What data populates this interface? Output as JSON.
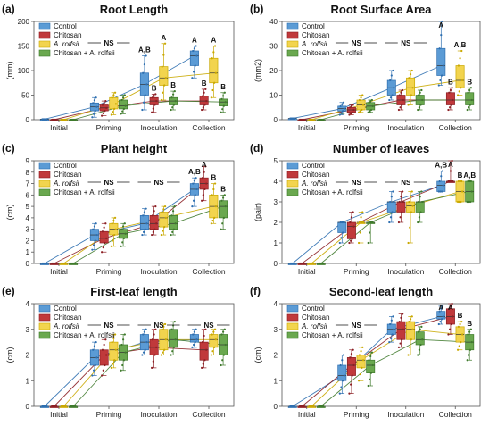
{
  "figure": {
    "x_categories": [
      "Initial",
      "Priming",
      "Inoculation",
      "Collection"
    ],
    "legend_labels": [
      "Control",
      "Chitosan",
      "A. rolfsii",
      "Chitosan + A. rolfsii"
    ],
    "legend_italic": [
      false,
      false,
      true,
      false
    ],
    "colors": [
      "#5b9bd5",
      "#c0393b",
      "#f2d44e",
      "#6aa84f"
    ],
    "outline_colors": [
      "#2e6fb0",
      "#8c1f24",
      "#c9a800",
      "#3f7a2c"
    ],
    "significance_note": "NS"
  },
  "chart_data": [
    {
      "panel": "(a)",
      "type": "box",
      "title": "Root Length",
      "ylabel": "(mm)",
      "ylim": [
        0,
        200
      ],
      "yticks": [
        0,
        50,
        100,
        150,
        200
      ],
      "box_stats": [
        [
          [
            1,
            1,
            1,
            1,
            1
          ],
          [
            5,
            18,
            26,
            34,
            45
          ],
          [
            20,
            50,
            72,
            95,
            130
          ],
          [
            85,
            110,
            130,
            140,
            150
          ]
        ],
        [
          [
            0,
            0,
            0,
            0,
            0
          ],
          [
            8,
            18,
            24,
            30,
            38
          ],
          [
            15,
            30,
            38,
            45,
            52
          ],
          [
            20,
            30,
            38,
            48,
            62
          ]
        ],
        [
          [
            0,
            0,
            0,
            0,
            0
          ],
          [
            10,
            22,
            32,
            45,
            55
          ],
          [
            40,
            70,
            85,
            108,
            155
          ],
          [
            45,
            75,
            95,
            125,
            150
          ]
        ],
        [
          [
            0,
            0,
            0,
            0,
            0
          ],
          [
            12,
            22,
            28,
            40,
            50
          ],
          [
            20,
            30,
            38,
            45,
            58
          ],
          [
            15,
            28,
            36,
            42,
            55
          ]
        ]
      ],
      "trend": [
        [
          1,
          26,
          72,
          130
        ],
        [
          0,
          24,
          38,
          38
        ],
        [
          0,
          32,
          85,
          95
        ],
        [
          0,
          28,
          38,
          36
        ]
      ],
      "labels": [
        [
          [
            "A,B",
            2,
            0
          ],
          [
            "B",
            2,
            1
          ],
          [
            "A",
            2,
            2
          ],
          [
            "B",
            2,
            3
          ]
        ],
        [
          [
            "A",
            3,
            0
          ],
          [
            "B",
            3,
            1
          ],
          [
            "A",
            3,
            2
          ],
          [
            "B",
            3,
            3
          ]
        ]
      ],
      "ns_group": 1
    },
    {
      "panel": "(b)",
      "type": "box",
      "title": "Root Surface Area",
      "ylabel": "(mm2)",
      "ylim": [
        0,
        40
      ],
      "yticks": [
        0,
        10,
        20,
        30,
        40
      ],
      "box_stats": [
        [
          [
            0.5,
            0.5,
            0.5,
            0.5,
            0.5
          ],
          [
            2,
            3.5,
            4.5,
            5.5,
            7
          ],
          [
            8,
            10,
            13,
            16,
            20
          ],
          [
            14,
            18,
            22,
            29,
            40
          ]
        ],
        [
          [
            0,
            0,
            0,
            0,
            0
          ],
          [
            2,
            3,
            4,
            5,
            6
          ],
          [
            4,
            6,
            8,
            10,
            12
          ],
          [
            4,
            6,
            8,
            11,
            13
          ]
        ],
        [
          [
            0,
            0,
            0,
            0,
            0
          ],
          [
            3,
            4,
            6,
            8,
            10
          ],
          [
            6,
            10,
            13,
            17,
            20
          ],
          [
            10,
            13,
            16,
            22,
            28
          ]
        ],
        [
          [
            0,
            0,
            0,
            0,
            0
          ],
          [
            3,
            4,
            5.5,
            7,
            8
          ],
          [
            4,
            6,
            8,
            10,
            12
          ],
          [
            4,
            6,
            8,
            11,
            13
          ]
        ]
      ],
      "trend": [
        [
          0.5,
          4.5,
          13,
          22
        ],
        [
          0,
          4,
          8,
          8
        ],
        [
          0,
          6,
          13,
          16
        ],
        [
          0,
          5.5,
          8,
          8
        ]
      ],
      "labels": [
        [
          [
            "A",
            3,
            0
          ],
          [
            "B",
            3,
            1
          ],
          [
            "A,B",
            3,
            2
          ],
          [
            "B",
            3,
            3
          ]
        ]
      ],
      "ns_group": [
        1,
        2
      ]
    },
    {
      "panel": "(c)",
      "type": "box",
      "title": "Plant height",
      "ylabel": "(cm)",
      "ylim": [
        0,
        9
      ],
      "yticks": [
        0,
        1,
        2,
        3,
        4,
        5,
        6,
        7,
        8,
        9
      ],
      "box_stats": [
        [
          [
            0,
            0,
            0,
            0,
            0
          ],
          [
            1.2,
            2,
            2.5,
            3,
            3.5
          ],
          [
            2.5,
            3,
            3.5,
            4.2,
            4.8
          ],
          [
            5,
            6,
            6.5,
            7,
            7.5
          ]
        ],
        [
          [
            0,
            0,
            0,
            0,
            0
          ],
          [
            1,
            1.8,
            2.2,
            2.8,
            3.5
          ],
          [
            2.5,
            3,
            3.5,
            4.2,
            5
          ],
          [
            5.5,
            6.5,
            7,
            7.5,
            8.5
          ]
        ],
        [
          [
            0,
            0,
            0,
            0,
            0
          ],
          [
            1.5,
            2.5,
            3,
            3.5,
            4
          ],
          [
            2.5,
            3.2,
            4,
            4.5,
            5
          ],
          [
            3.5,
            4,
            5,
            6,
            7
          ]
        ],
        [
          [
            0,
            0,
            0,
            0,
            0
          ],
          [
            1.5,
            2.2,
            2.6,
            3,
            3.5
          ],
          [
            2.5,
            3,
            3.5,
            4.2,
            5
          ],
          [
            3,
            4,
            5,
            5.5,
            6
          ]
        ]
      ],
      "trend": [
        [
          0,
          2.5,
          3.5,
          6.5
        ],
        [
          0,
          2.2,
          3.5,
          7
        ],
        [
          0,
          3,
          4,
          5
        ],
        [
          0,
          2.6,
          3.5,
          5
        ]
      ],
      "labels": [
        [
          [
            "A,B",
            3,
            0
          ],
          [
            "A",
            3,
            1
          ],
          [
            "B",
            3,
            2
          ],
          [
            "B",
            3,
            3
          ]
        ]
      ],
      "ns_group": [
        1,
        2
      ]
    },
    {
      "panel": "(d)",
      "type": "box",
      "title": "Number of leaves",
      "ylabel": "(pair)",
      "ylim": [
        0,
        5
      ],
      "yticks": [
        0,
        1,
        2,
        3,
        4,
        5
      ],
      "box_stats": [
        [
          [
            0,
            0,
            0,
            0,
            0
          ],
          [
            1,
            1.5,
            2,
            2,
            2
          ],
          [
            2,
            2.5,
            3,
            3,
            3.5
          ],
          [
            3.5,
            3.5,
            3.8,
            4,
            4.5
          ]
        ],
        [
          [
            0,
            0,
            0,
            0,
            0
          ],
          [
            1,
            1.2,
            1.8,
            2,
            2.5
          ],
          [
            2,
            2.5,
            3,
            3,
            3.5
          ],
          [
            4,
            4,
            4,
            4,
            5
          ]
        ],
        [
          [
            0,
            0,
            0,
            0,
            0
          ],
          [
            1,
            2,
            2,
            2,
            2.5
          ],
          [
            1,
            2.5,
            2.8,
            3,
            3.5
          ],
          [
            3,
            3,
            3.5,
            4,
            4
          ]
        ],
        [
          [
            0,
            0,
            0,
            0,
            0
          ],
          [
            1,
            2,
            2,
            2,
            2
          ],
          [
            2,
            2.5,
            3,
            3,
            3.5
          ],
          [
            3,
            3,
            3.5,
            4,
            4
          ]
        ]
      ],
      "trend": [
        [
          0,
          2,
          3,
          3.8
        ],
        [
          0,
          1.8,
          3,
          4
        ],
        [
          0,
          2,
          2.8,
          3.5
        ],
        [
          0,
          2,
          3,
          3.5
        ]
      ],
      "labels": [
        [
          [
            "A,B",
            3,
            0
          ],
          [
            "A",
            3,
            1
          ],
          [
            "B",
            3,
            2
          ],
          [
            "A,B",
            3,
            3
          ]
        ]
      ],
      "ns_group": [
        1,
        2
      ]
    },
    {
      "panel": "(e)",
      "type": "box",
      "title": "First-leaf length",
      "ylabel": "(cm)",
      "ylim": [
        0,
        4
      ],
      "yticks": [
        0,
        1,
        2,
        3,
        4
      ],
      "box_stats": [
        [
          [
            0,
            0,
            0,
            0,
            0
          ],
          [
            1.2,
            1.6,
            1.9,
            2.2,
            2.5
          ],
          [
            2,
            2.2,
            2.5,
            2.8,
            3
          ],
          [
            2.3,
            2.5,
            2.6,
            2.8,
            3
          ]
        ],
        [
          [
            0,
            0,
            0,
            0,
            0
          ],
          [
            1.2,
            1.6,
            2,
            2.2,
            2.6
          ],
          [
            1.5,
            2,
            2.3,
            2.6,
            3
          ],
          [
            1.5,
            1.8,
            2.2,
            2.5,
            3
          ]
        ],
        [
          [
            0,
            0,
            0,
            0,
            0
          ],
          [
            1.5,
            1.8,
            2.2,
            2.5,
            2.8
          ],
          [
            2,
            2.2,
            2.6,
            3,
            3.2
          ],
          [
            2,
            2.3,
            2.6,
            2.8,
            3
          ]
        ],
        [
          [
            0,
            0,
            0,
            0,
            0
          ],
          [
            1.4,
            1.8,
            2.1,
            2.4,
            2.8
          ],
          [
            2,
            2.3,
            2.6,
            3,
            3.3
          ],
          [
            1.6,
            2,
            2.4,
            2.8,
            3
          ]
        ]
      ],
      "trend": [
        [
          0,
          1.9,
          2.5,
          2.6
        ],
        [
          0,
          2,
          2.3,
          2.2
        ],
        [
          0,
          2.2,
          2.6,
          2.6
        ],
        [
          0,
          2.1,
          2.6,
          2.4
        ]
      ],
      "labels": [],
      "ns_group": [
        1,
        2,
        3
      ]
    },
    {
      "panel": "(f)",
      "type": "box",
      "title": "Second-leaf length",
      "ylabel": "(cm)",
      "ylim": [
        0,
        4
      ],
      "yticks": [
        0,
        1,
        2,
        3,
        4
      ],
      "box_stats": [
        [
          [
            0,
            0,
            0,
            0,
            0
          ],
          [
            0.5,
            1,
            1.2,
            1.6,
            2
          ],
          [
            2.5,
            2.8,
            3,
            3.2,
            3.5
          ],
          [
            3.2,
            3.4,
            3.5,
            3.7,
            3.9
          ]
        ],
        [
          [
            0,
            0,
            0,
            0,
            0
          ],
          [
            0.5,
            1.2,
            1.6,
            1.9,
            2.2
          ],
          [
            2.3,
            2.6,
            3,
            3.3,
            3.6
          ],
          [
            2.8,
            3.2,
            3.5,
            3.8,
            4
          ]
        ],
        [
          [
            0,
            0,
            0,
            0,
            0
          ],
          [
            1,
            1.5,
            1.8,
            2,
            2.3
          ],
          [
            2,
            2.6,
            3,
            3.3,
            3.5
          ],
          [
            2.2,
            2.5,
            2.8,
            3.1,
            3.3
          ]
        ],
        [
          [
            0,
            0,
            0,
            0,
            0
          ],
          [
            0.8,
            1.3,
            1.6,
            1.8,
            2.1
          ],
          [
            2,
            2.4,
            2.6,
            2.9,
            3.1
          ],
          [
            1.8,
            2.2,
            2.5,
            2.8,
            3
          ]
        ]
      ],
      "trend": [
        [
          0,
          1.2,
          3,
          3.5
        ],
        [
          0,
          1.6,
          3,
          3.5
        ],
        [
          0,
          1.8,
          3,
          2.8
        ],
        [
          0,
          1.6,
          2.6,
          2.5
        ]
      ],
      "labels": [
        [
          [
            "A",
            3,
            0
          ],
          [
            "A",
            3,
            1
          ],
          [
            "B",
            3,
            2
          ],
          [
            "B",
            3,
            3
          ]
        ]
      ],
      "ns_group": 1
    }
  ]
}
